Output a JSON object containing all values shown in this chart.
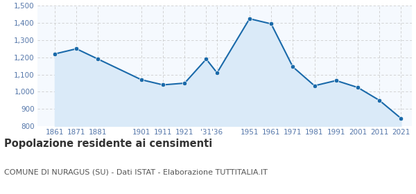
{
  "years": [
    1861,
    1871,
    1881,
    1901,
    1911,
    1921,
    1931,
    1936,
    1951,
    1961,
    1971,
    1981,
    1991,
    2001,
    2011,
    2021
  ],
  "population": [
    1220,
    1250,
    1190,
    1070,
    1040,
    1050,
    1190,
    1110,
    1425,
    1395,
    1145,
    1035,
    1065,
    1025,
    950,
    845
  ],
  "line_color": "#1a6aaa",
  "fill_color": "#daeaf8",
  "marker_color": "#1a6aaa",
  "background_color": "#f5f9fe",
  "grid_color": "#cccccc",
  "ylim": [
    800,
    1500
  ],
  "yticks": [
    800,
    900,
    1000,
    1100,
    1200,
    1300,
    1400,
    1500
  ],
  "xtick_positions": [
    1861,
    1871,
    1881,
    1901,
    1911,
    1921,
    1931,
    1936,
    1951,
    1961,
    1971,
    1981,
    1991,
    2001,
    2011,
    2021
  ],
  "xtick_labels": [
    "1861",
    "1871",
    "1881",
    "1901",
    "1911",
    "1921",
    "'31",
    "'36",
    "1951",
    "1961",
    "1971",
    "1981",
    "1991",
    "2001",
    "2011",
    "2021"
  ],
  "title": "Popolazione residente ai censimenti",
  "subtitle": "COMUNE DI NURAGUS (SU) - Dati ISTAT - Elaborazione TUTTITALIA.IT",
  "title_fontsize": 10.5,
  "subtitle_fontsize": 8.0,
  "tick_color": "#5577aa",
  "xlim_left": 1853,
  "xlim_right": 2026
}
